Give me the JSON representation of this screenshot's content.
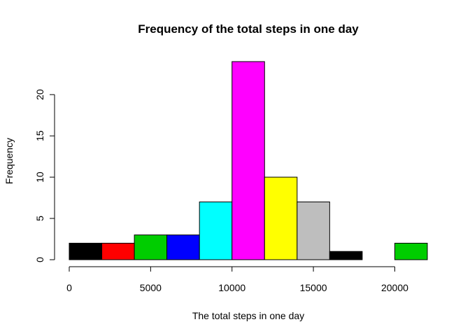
{
  "chart_data": {
    "type": "bar",
    "title": "Frequency of the total steps in one day",
    "xlabel": "The total steps in one day",
    "ylabel": "Frequency",
    "bins": [
      {
        "start": 0,
        "end": 2000,
        "count": 2,
        "color": "#000000"
      },
      {
        "start": 2000,
        "end": 4000,
        "count": 2,
        "color": "#FF0000"
      },
      {
        "start": 4000,
        "end": 6000,
        "count": 3,
        "color": "#00CD00"
      },
      {
        "start": 6000,
        "end": 8000,
        "count": 3,
        "color": "#0000FF"
      },
      {
        "start": 8000,
        "end": 10000,
        "count": 7,
        "color": "#00FFFF"
      },
      {
        "start": 10000,
        "end": 12000,
        "count": 24,
        "color": "#FF00FF"
      },
      {
        "start": 12000,
        "end": 14000,
        "count": 10,
        "color": "#FFFF00"
      },
      {
        "start": 14000,
        "end": 16000,
        "count": 7,
        "color": "#BEBEBE"
      },
      {
        "start": 16000,
        "end": 18000,
        "count": 1,
        "color": "#000000"
      },
      {
        "start": 18000,
        "end": 20000,
        "count": 0,
        "color": "#FF0000"
      },
      {
        "start": 20000,
        "end": 22000,
        "count": 2,
        "color": "#00CD00"
      }
    ],
    "xlim": [
      0,
      22000
    ],
    "ylim": [
      0,
      24
    ],
    "xticks": [
      0,
      5000,
      10000,
      15000,
      20000
    ],
    "xtick_labels": [
      "0",
      "5000",
      "10000",
      "15000",
      "20000"
    ],
    "yticks": [
      0,
      5,
      10,
      15,
      20
    ],
    "ytick_labels": [
      "0",
      "5",
      "10",
      "15",
      "20"
    ],
    "grid": false,
    "legend": "none"
  }
}
